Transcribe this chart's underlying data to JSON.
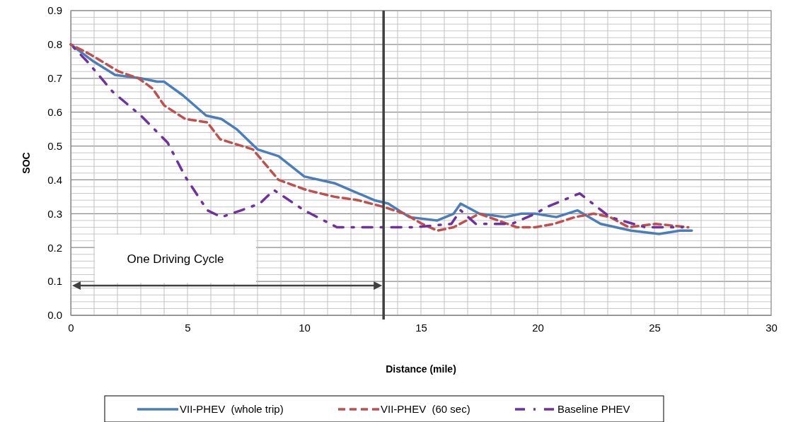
{
  "chart_data": {
    "type": "line",
    "xlabel": "Distance (mile)",
    "ylabel": "SOC",
    "xlim": [
      0,
      30
    ],
    "xticks": [
      0,
      {
        "value": 1,
        "label": null
      },
      {
        "value": 2,
        "label": null
      },
      {
        "value": 3,
        "label": null
      },
      {
        "value": 4,
        "label": null
      },
      5,
      {
        "value": 6,
        "label": null
      },
      {
        "value": 7,
        "label": null
      },
      {
        "value": 8,
        "label": null
      },
      {
        "value": 9,
        "label": null
      },
      10,
      {
        "value": 11,
        "label": null
      },
      {
        "value": 12,
        "label": null
      },
      {
        "value": 13,
        "label": null
      },
      {
        "value": 14,
        "label": null
      },
      15,
      {
        "value": 16,
        "label": null
      },
      {
        "value": 17,
        "label": null
      },
      {
        "value": 18,
        "label": null
      },
      {
        "value": 19,
        "label": null
      },
      20,
      {
        "value": 21,
        "label": null
      },
      {
        "value": 22,
        "label": null
      },
      {
        "value": 23,
        "label": null
      },
      {
        "value": 24,
        "label": null
      },
      25,
      {
        "value": 26,
        "label": null
      },
      {
        "value": 27,
        "label": null
      },
      {
        "value": 28,
        "label": null
      },
      {
        "value": 29,
        "label": null
      },
      30
    ],
    "ylim": [
      0,
      0.9
    ],
    "yticks": [
      {
        "value": 0,
        "label": "0.0"
      },
      {
        "value": 0.02,
        "label": null
      },
      {
        "value": 0.04,
        "label": null
      },
      {
        "value": 0.06,
        "label": null
      },
      {
        "value": 0.08,
        "label": null
      },
      0.1,
      {
        "value": 0.12,
        "label": null
      },
      {
        "value": 0.14,
        "label": null
      },
      {
        "value": 0.16,
        "label": null
      },
      {
        "value": 0.18,
        "label": null
      },
      0.2,
      {
        "value": 0.22,
        "label": null
      },
      {
        "value": 0.24,
        "label": null
      },
      {
        "value": 0.26,
        "label": null
      },
      {
        "value": 0.28,
        "label": null
      },
      0.3,
      {
        "value": 0.32,
        "label": null
      },
      {
        "value": 0.34,
        "label": null
      },
      {
        "value": 0.36,
        "label": null
      },
      {
        "value": 0.38,
        "label": null
      },
      0.4,
      {
        "value": 0.42,
        "label": null
      },
      {
        "value": 0.44,
        "label": null
      },
      {
        "value": 0.46,
        "label": null
      },
      {
        "value": 0.48,
        "label": null
      },
      0.5,
      {
        "value": 0.52,
        "label": null
      },
      {
        "value": 0.54,
        "label": null
      },
      {
        "value": 0.56,
        "label": null
      },
      {
        "value": 0.58,
        "label": null
      },
      0.6,
      {
        "value": 0.62,
        "label": null
      },
      {
        "value": 0.64,
        "label": null
      },
      {
        "value": 0.66,
        "label": null
      },
      {
        "value": 0.68,
        "label": null
      },
      0.7,
      {
        "value": 0.72,
        "label": null
      },
      {
        "value": 0.74,
        "label": null
      },
      {
        "value": 0.76,
        "label": null
      },
      {
        "value": 0.78,
        "label": null
      },
      0.8,
      {
        "value": 0.82,
        "label": null
      },
      {
        "value": 0.84,
        "label": null
      },
      {
        "value": 0.86,
        "label": null
      },
      {
        "value": 0.88,
        "label": null
      },
      0.9
    ],
    "grid": true,
    "legend": "bottom",
    "marker": "none",
    "series": [
      {
        "name": "VII-PHEV  (whole trip)",
        "color": "#4a7ebb",
        "line_style": "solid",
        "x": [
          0,
          0.97,
          1.9,
          3,
          3.7,
          4,
          4.8,
          5.8,
          6.45,
          7.1,
          8,
          8.9,
          10,
          11.3,
          13,
          13.6,
          14.5,
          15.7,
          16.4,
          16.7,
          17.5,
          18.6,
          19.3,
          19.9,
          20.8,
          21.7,
          22.7,
          24,
          25.2,
          26.1,
          26.6
        ],
        "values": [
          0.8,
          0.75,
          0.71,
          0.7,
          0.69,
          0.69,
          0.65,
          0.59,
          0.58,
          0.55,
          0.49,
          0.47,
          0.41,
          0.39,
          0.34,
          0.33,
          0.29,
          0.28,
          0.3,
          0.33,
          0.3,
          0.29,
          0.3,
          0.3,
          0.29,
          0.31,
          0.27,
          0.25,
          0.24,
          0.25,
          0.25
        ]
      },
      {
        "name": "VII-PHEV  (60 sec)",
        "color": "#c0504d",
        "line_style": "dashed",
        "x": [
          0,
          0.85,
          2.06,
          2.9,
          3.5,
          4,
          4.9,
          5.85,
          6.4,
          7.8,
          8.9,
          10.1,
          11.3,
          12.3,
          13.4,
          14.3,
          15.05,
          15.7,
          16.4,
          17.5,
          18.3,
          19.1,
          19.9,
          20.7,
          21.6,
          22.4,
          23.1,
          23.9,
          25.05,
          26.45
        ],
        "values": [
          0.8,
          0.77,
          0.72,
          0.7,
          0.67,
          0.62,
          0.58,
          0.57,
          0.52,
          0.49,
          0.4,
          0.37,
          0.35,
          0.34,
          0.32,
          0.3,
          0.27,
          0.25,
          0.26,
          0.3,
          0.28,
          0.26,
          0.26,
          0.27,
          0.29,
          0.3,
          0.29,
          0.26,
          0.27,
          0.26
        ]
      },
      {
        "name": "Baseline PHEV",
        "color": "#7030a0",
        "line_style": "dashdot",
        "x": [
          0,
          0.7,
          1.8,
          3,
          4.15,
          4.9,
          5.85,
          6.45,
          7.3,
          8.1,
          8.7,
          10,
          11.4,
          13,
          14.7,
          16.3,
          16.7,
          17.35,
          18.9,
          19.9,
          20.4,
          21.8,
          23.1,
          24.6,
          26.2
        ],
        "values": [
          0.8,
          0.75,
          0.66,
          0.59,
          0.51,
          0.41,
          0.31,
          0.29,
          0.31,
          0.33,
          0.37,
          0.31,
          0.26,
          0.26,
          0.26,
          0.27,
          0.31,
          0.27,
          0.27,
          0.3,
          0.32,
          0.36,
          0.29,
          0.26,
          0.26
        ]
      }
    ],
    "ref_lines": [
      {
        "axis": "x",
        "value": 13.4,
        "color": "#404040"
      }
    ],
    "annotations": [
      "One Driving Cycle"
    ]
  }
}
